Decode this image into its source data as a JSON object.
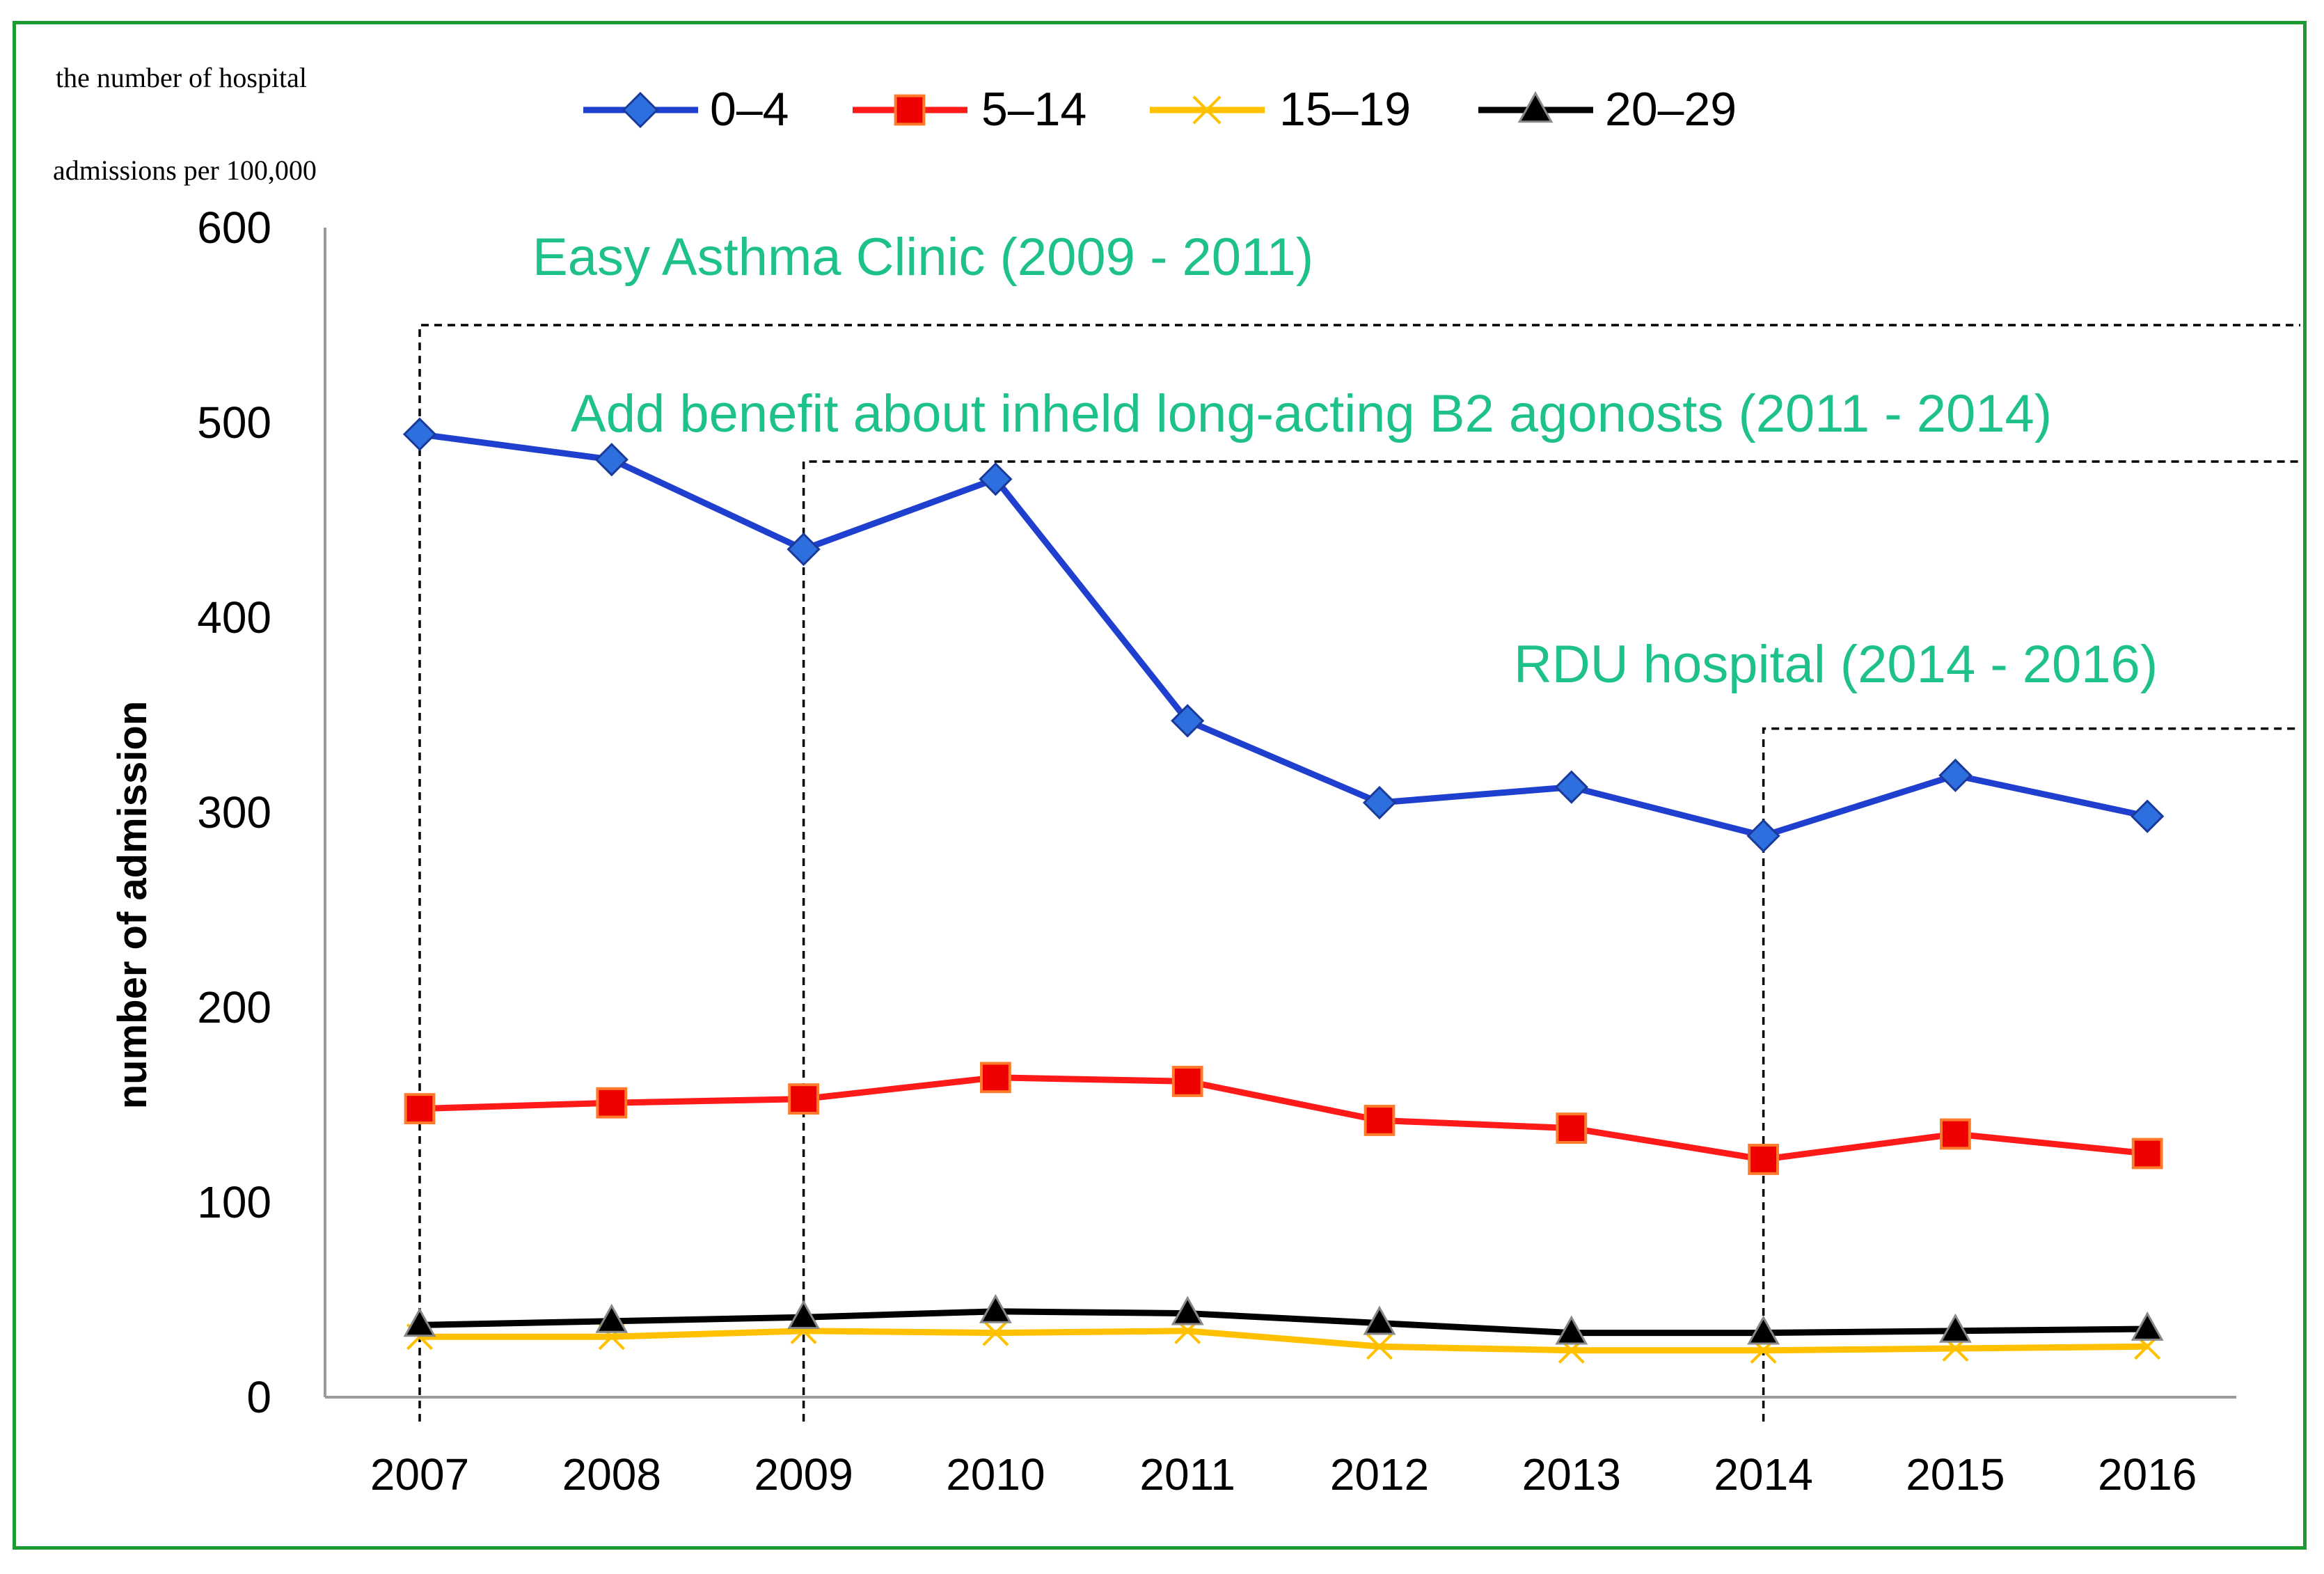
{
  "chart_data": {
    "type": "line",
    "title": "",
    "corner_label_lines": [
      "the number of hospital",
      "admissions per 100,000"
    ],
    "ylabel": "number of admission",
    "xlabel": "",
    "ylim": [
      0,
      600
    ],
    "yticks": [
      0,
      100,
      200,
      300,
      400,
      500,
      600
    ],
    "x": [
      "2007",
      "2008",
      "2009",
      "2010",
      "2011",
      "2012",
      "2013",
      "2014",
      "2015",
      "2016"
    ],
    "grid": false,
    "legend": "top",
    "series": [
      {
        "name": "0–4",
        "color": "#1f3fcf",
        "marker": "diamond",
        "marker_color": "#2e6fe0",
        "values": [
          494,
          481,
          435,
          471,
          347,
          305,
          313,
          288,
          319,
          298
        ]
      },
      {
        "name": "5–14",
        "color": "#ff1a1a",
        "marker": "square",
        "marker_color": "#ee0000",
        "values": [
          148,
          151,
          153,
          164,
          162,
          142,
          138,
          122,
          135,
          125
        ]
      },
      {
        "name": "15–19",
        "color": "#ffc000",
        "marker": "x",
        "marker_color": "#ffc000",
        "values": [
          31,
          31,
          34,
          33,
          34,
          26,
          24,
          24,
          25,
          26
        ]
      },
      {
        "name": "20–29",
        "color": "#000000",
        "marker": "triangle",
        "marker_color": "#000000",
        "values": [
          37,
          39,
          41,
          44,
          43,
          38,
          33,
          33,
          34,
          35
        ]
      }
    ],
    "annotations": [
      {
        "text": "Easy Asthma Clinic (2009 - 2011)",
        "color": "#1fc18a",
        "start_year": "2007",
        "level": 550
      },
      {
        "text": "Add benefit about inheld long-acting B2  agonosts (2011 - 2014)",
        "color": "#1fc18a",
        "start_year": "2009",
        "level": 480
      },
      {
        "text": "RDU hospital (2014 - 2016)",
        "color": "#1fc18a",
        "start_year": "2014",
        "level": 343
      }
    ],
    "accent_border_color": "#1e9a33"
  }
}
